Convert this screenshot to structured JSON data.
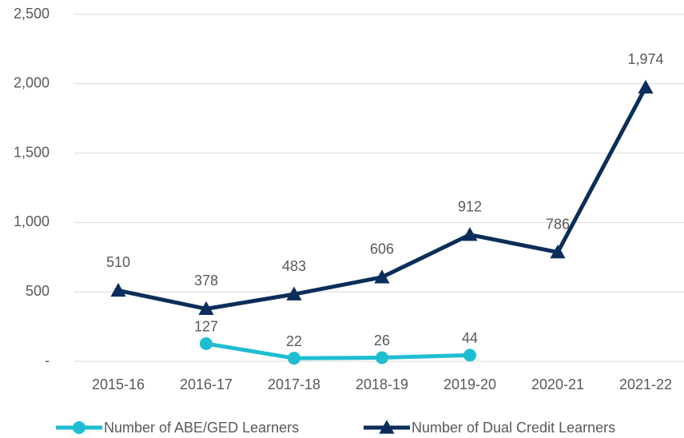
{
  "chart_data": {
    "type": "line",
    "categories": [
      "2015-16",
      "2016-17",
      "2017-18",
      "2018-19",
      "2019-20",
      "2020-21",
      "2021-22"
    ],
    "series": [
      {
        "name": "Number of ABE/GED Learners",
        "color": "#1ebdd2",
        "marker": "circle",
        "values": [
          null,
          127,
          22,
          26,
          44,
          null,
          null
        ]
      },
      {
        "name": "Number of Dual Credit Learners",
        "color": "#0b2d5b",
        "marker": "triangle",
        "values": [
          510,
          378,
          483,
          606,
          912,
          786,
          1974
        ],
        "value_labels": [
          "510",
          "378",
          "483",
          "606",
          "912",
          "786",
          "1,974"
        ]
      }
    ],
    "ylim": [
      0,
      2500
    ],
    "yticks": [
      {
        "value": 0,
        "label": "-"
      },
      500,
      {
        "value": 1000,
        "label": "1,000"
      },
      {
        "value": 1500,
        "label": "1,500"
      },
      {
        "value": 2000,
        "label": "2,000"
      },
      {
        "value": 2500,
        "label": "2,500"
      }
    ],
    "grid": true,
    "legend": "bottom"
  }
}
